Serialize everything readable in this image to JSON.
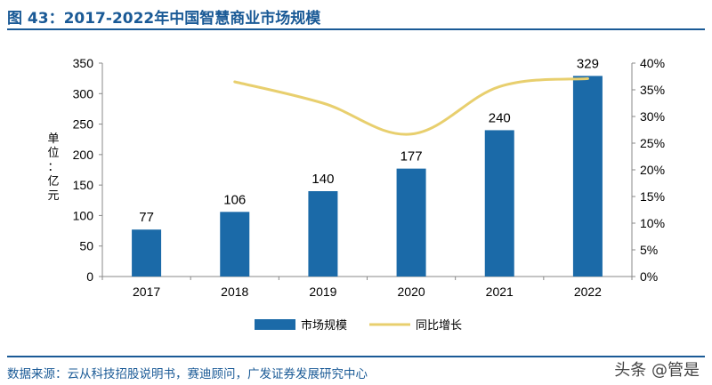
{
  "figure_title": "图 43：2017-2022年中国智慧商业市场规模",
  "source_note": "数据来源：云从科技招股说明书，赛迪顾问，广发证券发展研究中心",
  "watermark": "头条 @管是",
  "colors": {
    "bar": "#1b6aa8",
    "line": "#e8cf6e",
    "accent": "#1a5a96"
  },
  "chart_data": {
    "type": "bar",
    "categories": [
      "2017",
      "2018",
      "2019",
      "2020",
      "2021",
      "2022"
    ],
    "series": [
      {
        "name": "市场规模",
        "type": "bar",
        "axis": "left",
        "values": [
          77,
          106,
          140,
          177,
          240,
          329
        ]
      },
      {
        "name": "同比增长",
        "type": "line",
        "axis": "right",
        "values": [
          null,
          36.5,
          32.5,
          26.7,
          35.6,
          37.1
        ]
      }
    ],
    "data_labels": [
      "77",
      "106",
      "140",
      "177",
      "240",
      "329"
    ],
    "ylabel": "单位：亿元",
    "ylim": [
      0,
      350
    ],
    "yticks": [
      "0",
      "50",
      "100",
      "150",
      "200",
      "250",
      "300",
      "350"
    ],
    "y2lim": [
      0,
      40
    ],
    "y2ticks": [
      "0%",
      "5%",
      "10%",
      "15%",
      "20%",
      "25%",
      "30%",
      "35%",
      "40%"
    ],
    "legend": [
      "市场规模",
      "同比增长"
    ],
    "legend_position": "bottom",
    "grid": false
  }
}
